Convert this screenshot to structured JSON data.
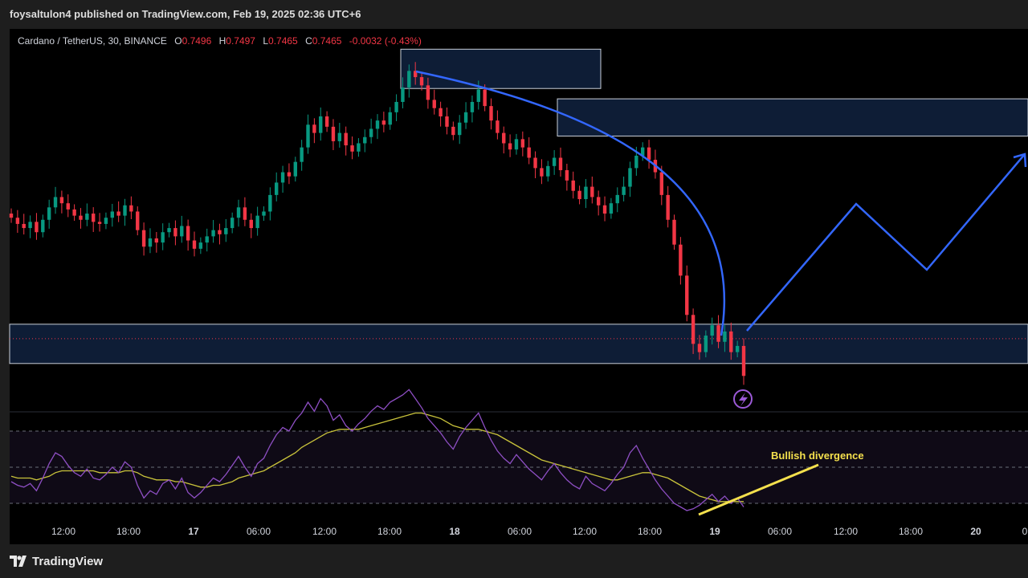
{
  "header": {
    "publish_text": "foysaltulon4 published on TradingView.com, Feb 19, 2025 02:36 UTC+6"
  },
  "legend": {
    "symbol": "Cardano / TetherUS, 30, BINANCE",
    "open_label": "O",
    "open": "0.7496",
    "high_label": "H",
    "high": "0.7497",
    "low_label": "L",
    "low": "0.7465",
    "close_label": "C",
    "close": "0.7465",
    "change": "-0.0032 (-0.43%)"
  },
  "annotations": {
    "bullish_divergence": "Bullish divergence",
    "lightning_icon": "lightning-icon"
  },
  "footer": {
    "brand": "TradingView"
  },
  "colors": {
    "up": "#089981",
    "down": "#f23645",
    "box_fill": "#0e1d36",
    "box_stroke": "#c9cfd8",
    "path": "#3367ff",
    "rsi": "#8e4fc4",
    "rsi_ma": "#c9c33b",
    "divergence": "#f4e04d",
    "text": "#d1d4dc"
  },
  "chart_data": [
    {
      "type": "candlestick",
      "title": "Cardano / TetherUS, 30, BINANCE",
      "x_tick_labels": [
        "12:00",
        "18:00",
        "17",
        "06:00",
        "12:00",
        "18:00",
        "18",
        "06:00",
        "12:00",
        "18:00",
        "19",
        "06:00",
        "12:00",
        "18:00",
        "20",
        "0"
      ],
      "close_series": [
        0.823,
        0.82,
        0.818,
        0.821,
        0.816,
        0.822,
        0.828,
        0.833,
        0.83,
        0.827,
        0.824,
        0.822,
        0.825,
        0.821,
        0.82,
        0.823,
        0.826,
        0.824,
        0.829,
        0.826,
        0.817,
        0.809,
        0.813,
        0.811,
        0.816,
        0.818,
        0.814,
        0.819,
        0.812,
        0.808,
        0.811,
        0.814,
        0.817,
        0.815,
        0.818,
        0.823,
        0.828,
        0.822,
        0.818,
        0.824,
        0.826,
        0.834,
        0.84,
        0.845,
        0.843,
        0.85,
        0.857,
        0.868,
        0.864,
        0.872,
        0.867,
        0.86,
        0.864,
        0.858,
        0.855,
        0.859,
        0.862,
        0.866,
        0.87,
        0.868,
        0.874,
        0.879,
        0.886,
        0.894,
        0.891,
        0.887,
        0.88,
        0.876,
        0.872,
        0.867,
        0.863,
        0.869,
        0.874,
        0.879,
        0.885,
        0.877,
        0.87,
        0.864,
        0.859,
        0.856,
        0.861,
        0.857,
        0.852,
        0.847,
        0.843,
        0.848,
        0.852,
        0.846,
        0.841,
        0.836,
        0.832,
        0.838,
        0.833,
        0.829,
        0.825,
        0.83,
        0.834,
        0.838,
        0.847,
        0.853,
        0.857,
        0.851,
        0.845,
        0.834,
        0.822,
        0.81,
        0.795,
        0.776,
        0.762,
        0.758,
        0.766,
        0.771,
        0.763,
        0.768,
        0.758,
        0.761,
        0.7465
      ],
      "plot_area": "candles with open/high/low/close per 30-minute bar",
      "annotations": [
        "supply box near 0.895",
        "supply box near 0.873 extending right",
        "demand box 0.752-0.771 extending right",
        "curved trendline",
        "projected zig-zag path"
      ]
    },
    {
      "type": "line",
      "title": "",
      "series": [
        {
          "name": "",
          "values": [
            42,
            40,
            39,
            41,
            37,
            44,
            52,
            58,
            56,
            51,
            47,
            45,
            49,
            44,
            43,
            46,
            50,
            47,
            53,
            50,
            40,
            33,
            37,
            35,
            41,
            43,
            38,
            44,
            36,
            33,
            36,
            40,
            44,
            42,
            46,
            51,
            56,
            50,
            45,
            52,
            55,
            62,
            68,
            72,
            70,
            76,
            80,
            86,
            81,
            88,
            84,
            76,
            79,
            73,
            70,
            74,
            77,
            81,
            84,
            82,
            86,
            88,
            90,
            93,
            88,
            83,
            77,
            73,
            69,
            64,
            60,
            67,
            72,
            76,
            80,
            72,
            65,
            59,
            55,
            52,
            57,
            53,
            49,
            46,
            43,
            48,
            52,
            47,
            43,
            40,
            38,
            45,
            41,
            39,
            37,
            41,
            46,
            50,
            58,
            62,
            55,
            49,
            43,
            38,
            34,
            30,
            28,
            26,
            27,
            29,
            32,
            35,
            31,
            34,
            30,
            33,
            28
          ]
        },
        {
          "name": "",
          "values": [
            45,
            44,
            44,
            44,
            43,
            44,
            45,
            47,
            48,
            48,
            48,
            48,
            48,
            48,
            47,
            47,
            47,
            47,
            48,
            48,
            47,
            45,
            44,
            43,
            43,
            43,
            42,
            42,
            41,
            40,
            39,
            39,
            40,
            40,
            41,
            42,
            44,
            45,
            46,
            47,
            48,
            50,
            52,
            54,
            56,
            58,
            61,
            63,
            65,
            67,
            69,
            70,
            71,
            71,
            71,
            71,
            72,
            73,
            74,
            75,
            76,
            77,
            78,
            79,
            80,
            80,
            79,
            78,
            77,
            75,
            73,
            72,
            71,
            71,
            71,
            70,
            69,
            68,
            66,
            64,
            62,
            60,
            58,
            56,
            54,
            53,
            52,
            51,
            50,
            49,
            48,
            47,
            46,
            45,
            44,
            43,
            43,
            44,
            45,
            46,
            47,
            47,
            46,
            45,
            44,
            42,
            40,
            38,
            36,
            34,
            33,
            32,
            31,
            31,
            31,
            31,
            31
          ]
        }
      ],
      "ylim": [
        0,
        100
      ],
      "grid": "dashed levels at 70, 50, 30"
    }
  ]
}
